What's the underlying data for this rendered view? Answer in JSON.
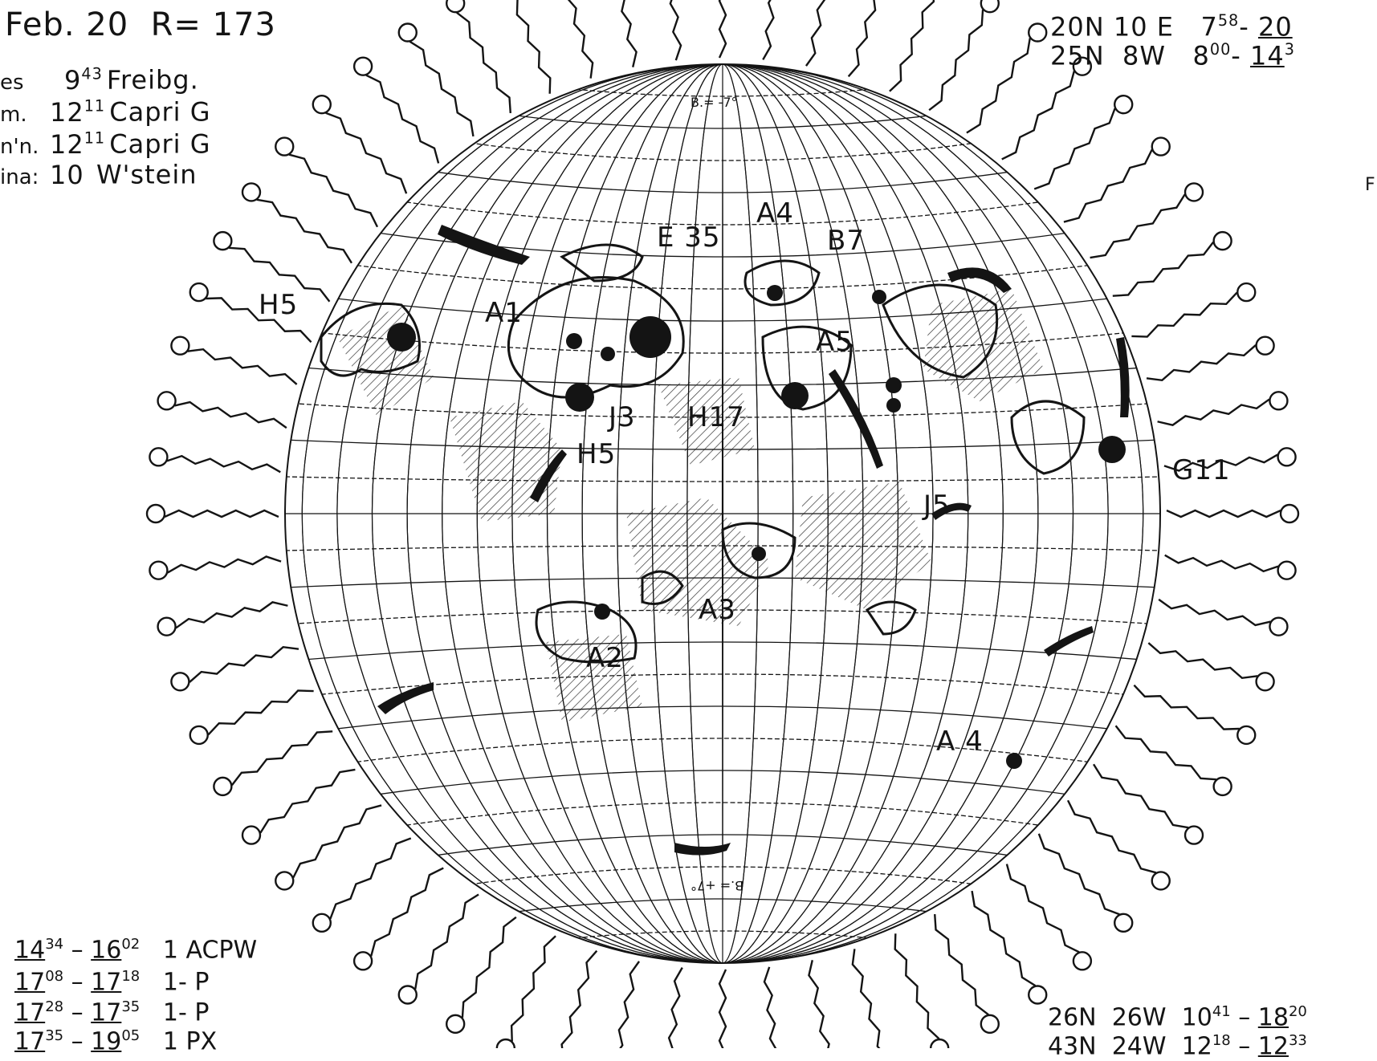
{
  "header": {
    "date": "Feb. 20",
    "rotation": "R= 173"
  },
  "observations": [
    {
      "prefix": "es",
      "time": "9",
      "time_sup": "43",
      "station": "Freibg."
    },
    {
      "prefix": "m.",
      "time": "12",
      "time_sup": "11",
      "station": "Capri G"
    },
    {
      "prefix": "n'n.",
      "time": "12",
      "time_sup": "11",
      "station": "Capri G"
    },
    {
      "prefix": "ina:",
      "time": "10",
      "time_sup": "",
      "station": "W'stein"
    }
  ],
  "top_right_rows": [
    {
      "lat": "20N",
      "lon": "10 E",
      "t1": "7",
      "t1_sup": "58",
      "t2": "20",
      "t2_sup": ""
    },
    {
      "lat": "25N",
      "lon": "8W",
      "t1": "8",
      "t1_sup": "00",
      "t2": "14",
      "t2_sup": "3"
    }
  ],
  "bottom_left_rows": [
    {
      "t1": "14",
      "t1_sup": "34",
      "t2": "16",
      "t2_sup": "02",
      "code": "1 ACPW"
    },
    {
      "t1": "17",
      "t1_sup": "08",
      "t2": "17",
      "t2_sup": "18",
      "code": "1-   P"
    },
    {
      "t1": "17",
      "t1_sup": "28",
      "t2": "17",
      "t2_sup": "35",
      "code": "1-   P"
    },
    {
      "t1": "17",
      "t1_sup": "35",
      "t2": "19",
      "t2_sup": "05",
      "code": "1     PX"
    }
  ],
  "bottom_right_rows": [
    {
      "lat": "26N",
      "lon": "26W",
      "t1": "10",
      "t1_sup": "41",
      "t2": "18",
      "t2_sup": "20"
    },
    {
      "lat": "43N",
      "lon": "24W",
      "t1": "12",
      "t1_sup": "18",
      "t2": "12",
      "t2_sup": "33"
    }
  ],
  "tilt_labels": {
    "top": "B.= -7°",
    "bottom": "B.= +7°"
  },
  "region_labels": [
    {
      "id": "H5-left",
      "text": "H5"
    },
    {
      "id": "A1",
      "text": "A1"
    },
    {
      "id": "E35",
      "text": "E 35"
    },
    {
      "id": "A4-top",
      "text": "A4"
    },
    {
      "id": "B7",
      "text": "B7"
    },
    {
      "id": "A5",
      "text": "A5"
    },
    {
      "id": "J3",
      "text": "J3"
    },
    {
      "id": "H17",
      "text": "H17"
    },
    {
      "id": "H5-center",
      "text": "H5"
    },
    {
      "id": "G11",
      "text": "G11"
    },
    {
      "id": "J5",
      "text": "J5"
    },
    {
      "id": "A3",
      "text": "A3"
    },
    {
      "id": "A2",
      "text": "A2"
    },
    {
      "id": "A4-bottom",
      "text": "A 4"
    }
  ],
  "edge_marks": {
    "right": "F"
  },
  "colors": {
    "ink": "#141414",
    "paper": "#ffffff"
  }
}
